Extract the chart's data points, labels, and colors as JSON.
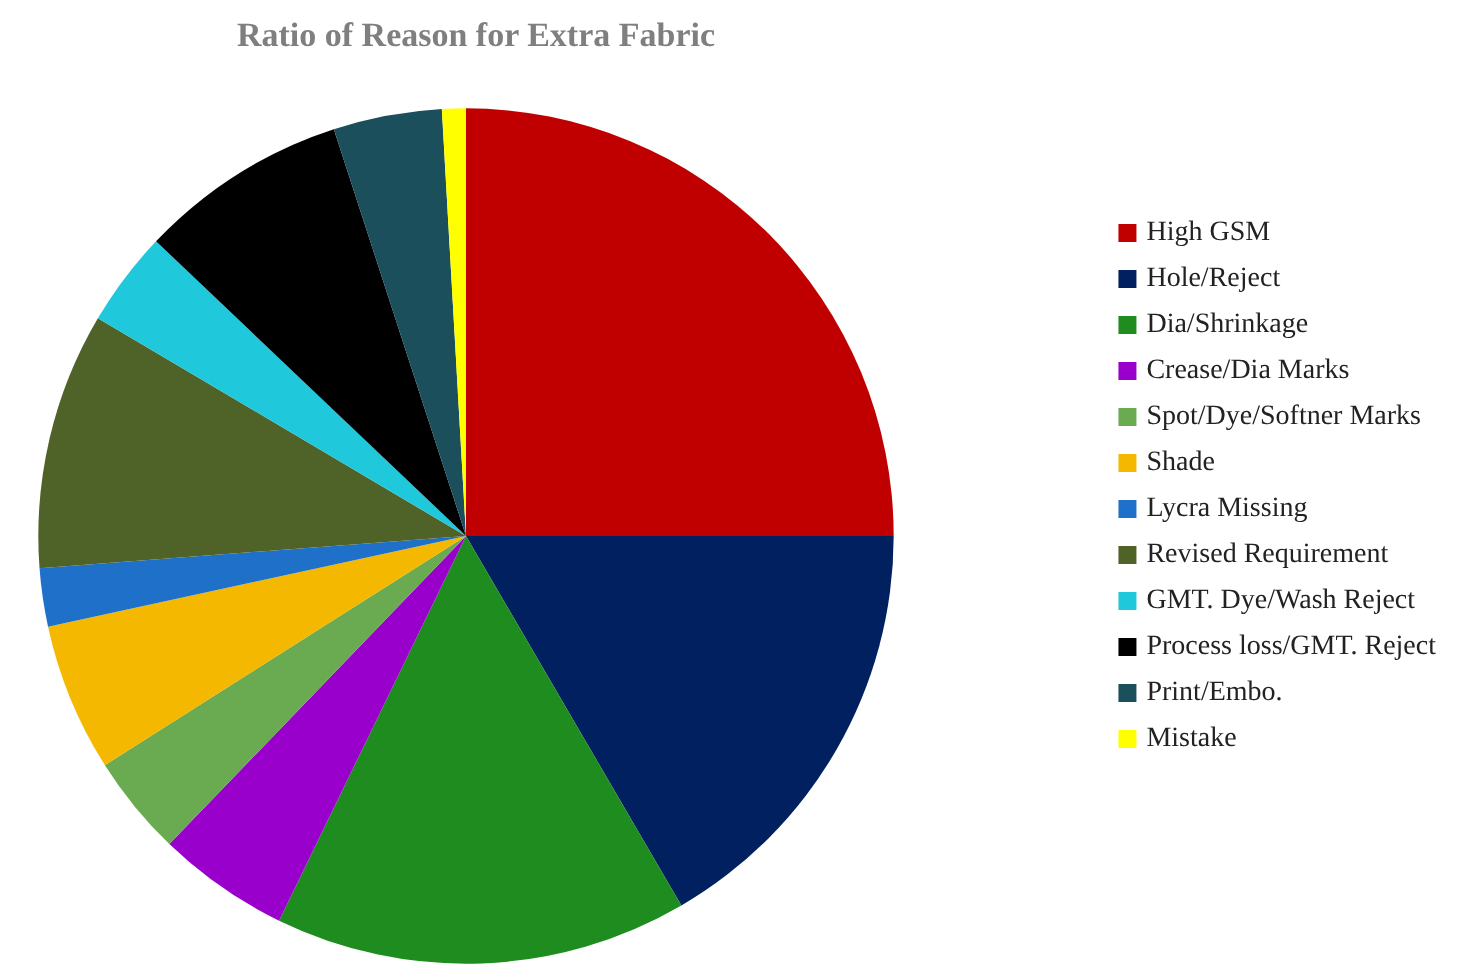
{
  "chart_data": {
    "type": "pie",
    "title": "Ratio of Reason for Extra Fabric",
    "categories": [
      "High GSM",
      "Hole/Reject",
      "Dia/Shrinkage",
      "Crease/Dia Marks",
      "Spot/Dye/Softner Marks",
      "Shade",
      "Lycra Missing",
      "Revised Requirement",
      "GMT. Dye/Wash Reject",
      "Process loss/GMT. Reject",
      "Print/Embo.",
      "Mistake"
    ],
    "values": [
      25,
      16.6,
      15.6,
      5,
      3.8,
      5.6,
      2.2,
      9.7,
      3.6,
      7.9,
      4.1,
      0.9
    ],
    "colors": [
      "#c00000",
      "#002060",
      "#1e8c1e",
      "#9900cc",
      "#6aaa50",
      "#f5b800",
      "#1f70c8",
      "#4f6228",
      "#20c8dc",
      "#000000",
      "#1b4f5c",
      "#ffff00"
    ],
    "legend": "right"
  }
}
